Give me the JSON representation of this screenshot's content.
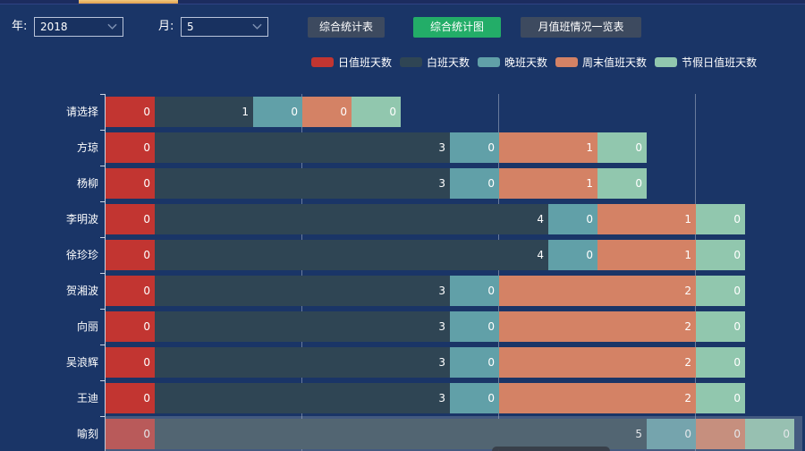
{
  "app": {
    "background_color": "#1a3567",
    "tab_indicator_color": "#e8ab5c"
  },
  "toolbar": {
    "year_label": "年:",
    "year_value": "2018",
    "month_label": "月:",
    "month_value": "5",
    "buttons": [
      {
        "label": "综合统计表",
        "active": false
      },
      {
        "label": "综合统计图",
        "active": true,
        "active_color": "#23ad68"
      },
      {
        "label": "月值班情况一览表",
        "active": false
      }
    ]
  },
  "chart_data": {
    "type": "bar",
    "orientation": "horizontal",
    "stacked": true,
    "legend_position": "top",
    "grid_on": true,
    "gridline_values": [
      2,
      4,
      6
    ],
    "xlim": [
      0,
      7
    ],
    "value_labels": "inside-right",
    "zero_value_min_bar": true,
    "categories": [
      "请选择",
      "方琼",
      "杨柳",
      "李明波",
      "徐珍珍",
      "贺湘波",
      "向丽",
      "吴浪辉",
      "王迪",
      "喻刻"
    ],
    "series": [
      {
        "name": "日值班天数",
        "color": "#c23531",
        "values": [
          0,
          0,
          0,
          0,
          0,
          0,
          0,
          0,
          0,
          0
        ]
      },
      {
        "name": "白班天数",
        "color": "#2f4554",
        "values": [
          1,
          3,
          3,
          4,
          4,
          3,
          3,
          3,
          3,
          5
        ]
      },
      {
        "name": "晚班天数",
        "color": "#61a0a8",
        "values": [
          0,
          0,
          0,
          0,
          0,
          0,
          0,
          0,
          0,
          0
        ]
      },
      {
        "name": "周末值班天数",
        "color": "#d48265",
        "values": [
          0,
          1,
          1,
          1,
          1,
          2,
          2,
          2,
          2,
          0
        ]
      },
      {
        "name": "节假日值班天数",
        "color": "#91c7ae",
        "values": [
          0,
          0,
          0,
          0,
          0,
          0,
          0,
          0,
          0,
          0
        ]
      }
    ],
    "highlighted_row": "喻刻",
    "tooltip_visible_at_bottom": true
  }
}
